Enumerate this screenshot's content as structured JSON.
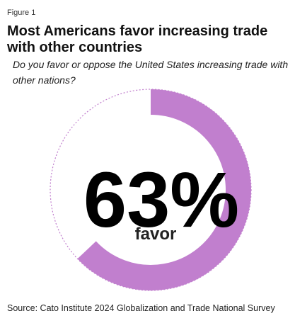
{
  "chart_data": {
    "type": "donut",
    "figure_label": "Figure 1",
    "title": "Most Americans favor increasing trade with other countries",
    "subtitle": "Do you favor or oppose the United States increasing trade with other nations?",
    "value": 63,
    "value_label": "63%",
    "label": "favor",
    "color": "#c17fce",
    "source": "Source: Cato Institute 2024 Globalization and Trade National Survey"
  }
}
